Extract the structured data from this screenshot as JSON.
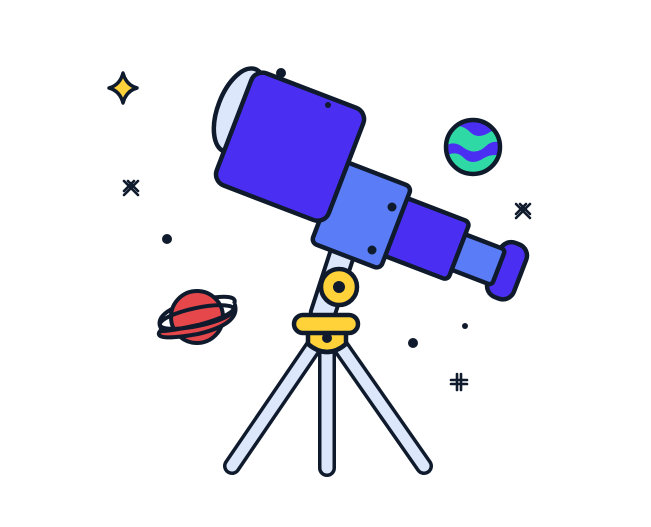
{
  "illustration": {
    "subject": "telescope",
    "elements": [
      "telescope-icon",
      "tripod-icon",
      "earth-planet-icon",
      "ringed-planet-icon",
      "sparkle-star-icon",
      "cross-star-icon",
      "plus-star-icon",
      "dot-star-icon"
    ]
  },
  "colors": {
    "outline": "#0f1b2d",
    "tube_main": "#4a2ff2",
    "tube_mid": "#5a7cf7",
    "lens_cap": "#dde7fb",
    "tripod": "#dde7fb",
    "mount": "#ffd23a",
    "earth_ocean": "#4a2ff2",
    "earth_land": "#2fd9a5",
    "saturn_body": "#e6474a",
    "star_yellow": "#ffd23a"
  }
}
